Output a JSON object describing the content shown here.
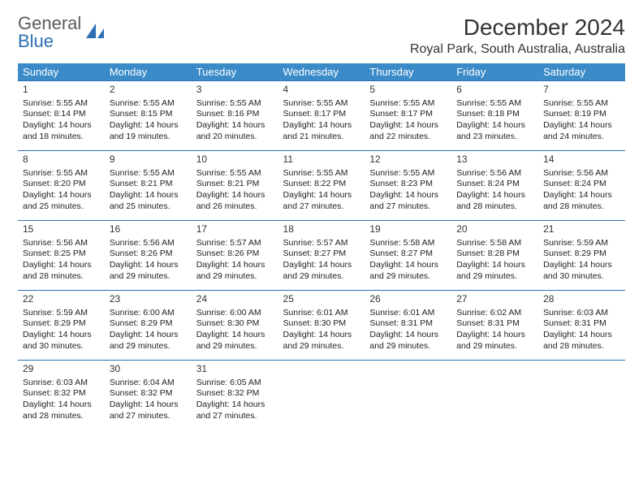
{
  "logo": {
    "word1": "General",
    "word2": "Blue"
  },
  "header": {
    "month_title": "December 2024",
    "location": "Royal Park, South Australia, Australia"
  },
  "colors": {
    "header_bg": "#3b8bc8",
    "header_text": "#ffffff",
    "border": "#2c6fb5",
    "logo_gray": "#5a5a5a",
    "logo_blue": "#2c6fb5",
    "text": "#222222",
    "background": "#ffffff"
  },
  "calendar": {
    "type": "table",
    "columns": [
      "Sunday",
      "Monday",
      "Tuesday",
      "Wednesday",
      "Thursday",
      "Friday",
      "Saturday"
    ],
    "days": [
      {
        "n": "1",
        "sunrise": "5:55 AM",
        "sunset": "8:14 PM",
        "dl_h": "14",
        "dl_m": "18"
      },
      {
        "n": "2",
        "sunrise": "5:55 AM",
        "sunset": "8:15 PM",
        "dl_h": "14",
        "dl_m": "19"
      },
      {
        "n": "3",
        "sunrise": "5:55 AM",
        "sunset": "8:16 PM",
        "dl_h": "14",
        "dl_m": "20"
      },
      {
        "n": "4",
        "sunrise": "5:55 AM",
        "sunset": "8:17 PM",
        "dl_h": "14",
        "dl_m": "21"
      },
      {
        "n": "5",
        "sunrise": "5:55 AM",
        "sunset": "8:17 PM",
        "dl_h": "14",
        "dl_m": "22"
      },
      {
        "n": "6",
        "sunrise": "5:55 AM",
        "sunset": "8:18 PM",
        "dl_h": "14",
        "dl_m": "23"
      },
      {
        "n": "7",
        "sunrise": "5:55 AM",
        "sunset": "8:19 PM",
        "dl_h": "14",
        "dl_m": "24"
      },
      {
        "n": "8",
        "sunrise": "5:55 AM",
        "sunset": "8:20 PM",
        "dl_h": "14",
        "dl_m": "25"
      },
      {
        "n": "9",
        "sunrise": "5:55 AM",
        "sunset": "8:21 PM",
        "dl_h": "14",
        "dl_m": "25"
      },
      {
        "n": "10",
        "sunrise": "5:55 AM",
        "sunset": "8:21 PM",
        "dl_h": "14",
        "dl_m": "26"
      },
      {
        "n": "11",
        "sunrise": "5:55 AM",
        "sunset": "8:22 PM",
        "dl_h": "14",
        "dl_m": "27"
      },
      {
        "n": "12",
        "sunrise": "5:55 AM",
        "sunset": "8:23 PM",
        "dl_h": "14",
        "dl_m": "27"
      },
      {
        "n": "13",
        "sunrise": "5:56 AM",
        "sunset": "8:24 PM",
        "dl_h": "14",
        "dl_m": "28"
      },
      {
        "n": "14",
        "sunrise": "5:56 AM",
        "sunset": "8:24 PM",
        "dl_h": "14",
        "dl_m": "28"
      },
      {
        "n": "15",
        "sunrise": "5:56 AM",
        "sunset": "8:25 PM",
        "dl_h": "14",
        "dl_m": "28"
      },
      {
        "n": "16",
        "sunrise": "5:56 AM",
        "sunset": "8:26 PM",
        "dl_h": "14",
        "dl_m": "29"
      },
      {
        "n": "17",
        "sunrise": "5:57 AM",
        "sunset": "8:26 PM",
        "dl_h": "14",
        "dl_m": "29"
      },
      {
        "n": "18",
        "sunrise": "5:57 AM",
        "sunset": "8:27 PM",
        "dl_h": "14",
        "dl_m": "29"
      },
      {
        "n": "19",
        "sunrise": "5:58 AM",
        "sunset": "8:27 PM",
        "dl_h": "14",
        "dl_m": "29"
      },
      {
        "n": "20",
        "sunrise": "5:58 AM",
        "sunset": "8:28 PM",
        "dl_h": "14",
        "dl_m": "29"
      },
      {
        "n": "21",
        "sunrise": "5:59 AM",
        "sunset": "8:29 PM",
        "dl_h": "14",
        "dl_m": "30"
      },
      {
        "n": "22",
        "sunrise": "5:59 AM",
        "sunset": "8:29 PM",
        "dl_h": "14",
        "dl_m": "30"
      },
      {
        "n": "23",
        "sunrise": "6:00 AM",
        "sunset": "8:29 PM",
        "dl_h": "14",
        "dl_m": "29"
      },
      {
        "n": "24",
        "sunrise": "6:00 AM",
        "sunset": "8:30 PM",
        "dl_h": "14",
        "dl_m": "29"
      },
      {
        "n": "25",
        "sunrise": "6:01 AM",
        "sunset": "8:30 PM",
        "dl_h": "14",
        "dl_m": "29"
      },
      {
        "n": "26",
        "sunrise": "6:01 AM",
        "sunset": "8:31 PM",
        "dl_h": "14",
        "dl_m": "29"
      },
      {
        "n": "27",
        "sunrise": "6:02 AM",
        "sunset": "8:31 PM",
        "dl_h": "14",
        "dl_m": "29"
      },
      {
        "n": "28",
        "sunrise": "6:03 AM",
        "sunset": "8:31 PM",
        "dl_h": "14",
        "dl_m": "28"
      },
      {
        "n": "29",
        "sunrise": "6:03 AM",
        "sunset": "8:32 PM",
        "dl_h": "14",
        "dl_m": "28"
      },
      {
        "n": "30",
        "sunrise": "6:04 AM",
        "sunset": "8:32 PM",
        "dl_h": "14",
        "dl_m": "27"
      },
      {
        "n": "31",
        "sunrise": "6:05 AM",
        "sunset": "8:32 PM",
        "dl_h": "14",
        "dl_m": "27"
      }
    ],
    "labels": {
      "sunrise": "Sunrise:",
      "sunset": "Sunset:",
      "daylight_prefix": "Daylight:",
      "hours_word": "hours",
      "and_word": "and",
      "minutes_word": "minutes."
    }
  }
}
